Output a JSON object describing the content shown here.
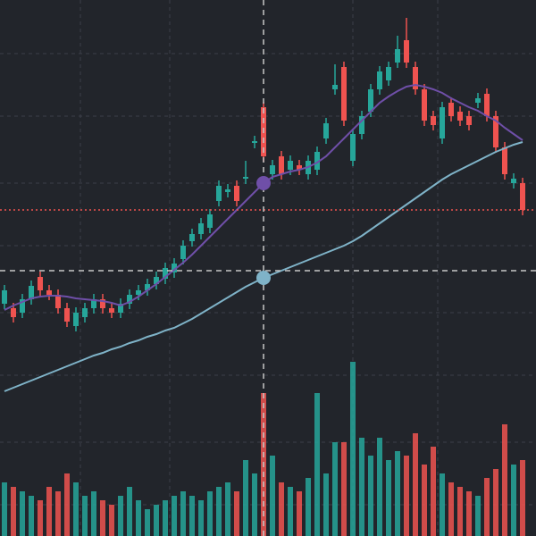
{
  "chart_data": {
    "type": "candlestick",
    "up_color": "#26a69a",
    "down_color": "#ef5350",
    "xlim": [
      -0.5,
      59.5
    ],
    "ylim": [
      0,
      600
    ],
    "xticks": [
      8.5,
      18.5,
      39,
      48.5
    ],
    "yticks": [
      540,
      470,
      395,
      325,
      250,
      180,
      105,
      35
    ],
    "grid": true,
    "volume_lim": [
      0,
      200
    ],
    "open": [
      260,
      255,
      250,
      265,
      290,
      275,
      270,
      255,
      235,
      245,
      255,
      265,
      255,
      250,
      260,
      270,
      275,
      282,
      288,
      295,
      310,
      330,
      338,
      345,
      375,
      385,
      392,
      400,
      440,
      480,
      405,
      425,
      410,
      415,
      405,
      410,
      445,
      500,
      525,
      420,
      450,
      475,
      500,
      510,
      530,
      555,
      525,
      500,
      470,
      445,
      485,
      475,
      470,
      485,
      495,
      470,
      435,
      395,
      395
    ],
    "high": [
      281,
      261,
      271,
      286,
      296,
      281,
      276,
      261,
      256,
      261,
      271,
      271,
      261,
      266,
      276,
      281,
      288,
      296,
      306,
      311,
      331,
      344,
      356,
      366,
      398,
      394,
      398,
      420,
      448,
      486,
      421,
      431,
      426,
      421,
      426,
      436,
      468,
      528,
      531,
      456,
      476,
      506,
      526,
      531,
      560,
      580,
      531,
      506,
      476,
      486,
      491,
      481,
      476,
      496,
      501,
      476,
      441,
      406,
      401
    ],
    "low": [
      254,
      239,
      244,
      259,
      269,
      264,
      249,
      234,
      229,
      239,
      249,
      249,
      244,
      244,
      254,
      264,
      269,
      276,
      282,
      289,
      304,
      324,
      332,
      339,
      369,
      379,
      369,
      394,
      434,
      419,
      399,
      399,
      404,
      404,
      399,
      404,
      439,
      494,
      459,
      414,
      444,
      469,
      494,
      504,
      524,
      524,
      494,
      459,
      454,
      439,
      464,
      459,
      454,
      479,
      464,
      429,
      399,
      389,
      359
    ],
    "close": [
      275,
      245,
      265,
      280,
      275,
      270,
      255,
      240,
      250,
      255,
      265,
      255,
      250,
      260,
      270,
      275,
      282,
      290,
      300,
      305,
      325,
      338,
      350,
      360,
      392,
      388,
      375,
      402,
      442,
      425,
      415,
      405,
      420,
      410,
      420,
      430,
      462,
      505,
      465,
      450,
      470,
      500,
      520,
      525,
      545,
      530,
      500,
      465,
      460,
      480,
      470,
      465,
      460,
      490,
      470,
      435,
      405,
      400,
      365
    ],
    "volume": [
      60,
      55,
      50,
      45,
      40,
      55,
      50,
      70,
      60,
      45,
      50,
      40,
      35,
      45,
      55,
      40,
      30,
      35,
      40,
      45,
      50,
      45,
      40,
      50,
      55,
      60,
      50,
      85,
      70,
      160,
      90,
      60,
      55,
      50,
      65,
      160,
      70,
      105,
      105,
      195,
      110,
      90,
      110,
      85,
      95,
      90,
      115,
      80,
      100,
      70,
      60,
      55,
      50,
      45,
      65,
      75,
      125,
      80,
      85
    ],
    "ma_fast": {
      "color": "#6f4fa8",
      "values": [
        253,
        258,
        262,
        266,
        268,
        269,
        269,
        268,
        266,
        265,
        264,
        263,
        261,
        258,
        262,
        268,
        275,
        282,
        290,
        298,
        306,
        315,
        325,
        335,
        345,
        355,
        365,
        375,
        385,
        395,
        402,
        405,
        408,
        410,
        413,
        418,
        425,
        435,
        445,
        455,
        465,
        475,
        485,
        492,
        498,
        503,
        505,
        503,
        500,
        496,
        490,
        485,
        480,
        476,
        470,
        465,
        457,
        450,
        443
      ]
    },
    "ma_slow": {
      "color": "#7fb3c8",
      "values": [
        162,
        166,
        170,
        174,
        178,
        182,
        186,
        190,
        194,
        198,
        202,
        205,
        209,
        212,
        216,
        219,
        223,
        226,
        230,
        233,
        238,
        243,
        249,
        255,
        261,
        267,
        273,
        279,
        284,
        289,
        293,
        297,
        301,
        305,
        309,
        313,
        317,
        321,
        325,
        330,
        336,
        343,
        350,
        357,
        364,
        371,
        378,
        385,
        392,
        399,
        405,
        410,
        415,
        420,
        425,
        430,
        434,
        438,
        441
      ]
    },
    "crosshair": {
      "index": 29,
      "price": 297
    }
  }
}
